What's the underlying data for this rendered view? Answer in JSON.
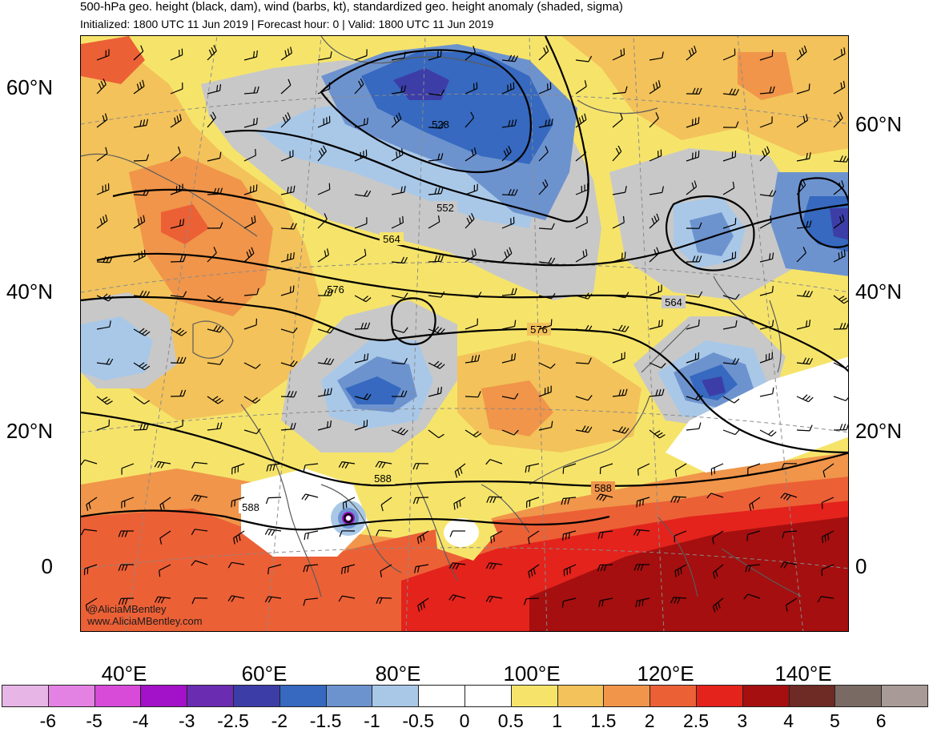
{
  "title": "500-hPa geo. height (black, dam), wind (barbs, kt), standardized geo. height anomaly (shaded, sigma)",
  "subtitle": "Initialized: 1800 UTC 11 Jun 2019 | Forecast hour: 0 | Valid: 1800 UTC 11 Jun 2019",
  "lat_labels": [
    "60°N",
    "40°N",
    "20°N",
    "0"
  ],
  "lon_labels": [
    "40°E",
    "60°E",
    "80°E",
    "100°E",
    "120°E",
    "140°E"
  ],
  "contour_labels": [
    "528",
    "552",
    "564",
    "576",
    "576",
    "564",
    "588",
    "588",
    "588"
  ],
  "credit": {
    "handle": "@AliciaMBentley",
    "site": "www.AliciaMBentley.com"
  },
  "colorbar": {
    "labels": [
      "-6",
      "-5",
      "-4",
      "-3",
      "-2.5",
      "-2",
      "-1.5",
      "-1",
      "-0.5",
      "0",
      "0.5",
      "1",
      "1.5",
      "2",
      "2.5",
      "3",
      "4",
      "5",
      "6"
    ],
    "colors": [
      "#e8b6e6",
      "#e482e4",
      "#d84bd8",
      "#a312c8",
      "#6a2cb0",
      "#3d3da8",
      "#3669bf",
      "#6d93cf",
      "#a9c8e8",
      "#ffffff",
      "#ffffff",
      "#f6e46a",
      "#f3c25a",
      "#f0954a",
      "#ec6036",
      "#e3231c",
      "#a50f0f",
      "#6e2a24",
      "#7a6a64",
      "#a89a96"
    ]
  }
}
